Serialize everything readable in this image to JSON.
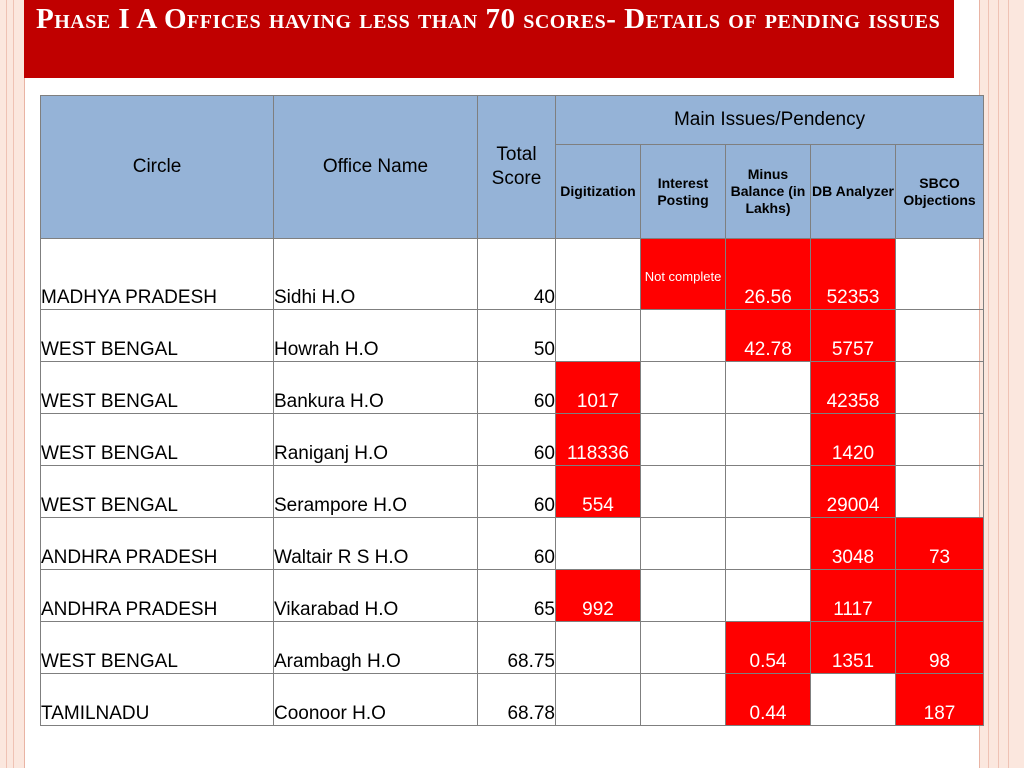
{
  "title": "Phase I A Offices having less than 70 scores- Details of pending issues",
  "table": {
    "headers": {
      "circle": "Circle",
      "office_name": "Office Name",
      "total_score": "Total Score",
      "main_issues": "Main Issues/Pendency",
      "digitization": "Digitization",
      "interest_posting": "Interest Posting",
      "minus_balance": "Minus Balance (in Lakhs)",
      "db_analyzer": "DB Analyzer",
      "sbco_objections": "SBCO Objections"
    },
    "highlight_color": "#ff0000",
    "header_color": "#95b3d7",
    "rows": [
      {
        "circle": "MADHYA PRADESH",
        "office": "Sidhi H.O",
        "total": "40",
        "digitization": "",
        "interest": "Not complete",
        "minus": "26.56",
        "db": "52353",
        "sbco": ""
      },
      {
        "circle": "WEST BENGAL",
        "office": "Howrah H.O",
        "total": "50",
        "digitization": "",
        "interest": "",
        "minus": "42.78",
        "db": "5757",
        "sbco": ""
      },
      {
        "circle": "WEST BENGAL",
        "office": "Bankura H.O",
        "total": "60",
        "digitization": "1017",
        "interest": "",
        "minus": "",
        "db": "42358",
        "sbco": ""
      },
      {
        "circle": "WEST BENGAL",
        "office": "Raniganj H.O",
        "total": "60",
        "digitization": "118336",
        "interest": "",
        "minus": "",
        "db": "1420",
        "sbco": ""
      },
      {
        "circle": "WEST BENGAL",
        "office": "Serampore H.O",
        "total": "60",
        "digitization": "554",
        "interest": "",
        "minus": "",
        "db": "29004",
        "sbco": ""
      },
      {
        "circle": "ANDHRA PRADESH",
        "office": "Waltair R S H.O",
        "total": "60",
        "digitization": "",
        "interest": "",
        "minus": "",
        "db": "3048",
        "sbco": "73"
      },
      {
        "circle": "ANDHRA PRADESH",
        "office": "Vikarabad H.O",
        "total": "65",
        "digitization": "992",
        "interest": "",
        "minus": "",
        "db": "1117",
        "sbco": ""
      },
      {
        "circle": "WEST BENGAL",
        "office": "Arambagh H.O",
        "total": "68.75",
        "digitization": "",
        "interest": "",
        "minus": "0.54",
        "db": "1351",
        "sbco": "98"
      },
      {
        "circle": "TAMILNADU",
        "office": "Coonoor H.O",
        "total": "68.78",
        "digitization": "",
        "interest": "",
        "minus": "0.44",
        "db": "",
        "sbco": "187"
      }
    ],
    "red_cells": [
      [
        "interest",
        "minus",
        "db"
      ],
      [
        "minus",
        "db"
      ],
      [
        "digitization",
        "db"
      ],
      [
        "digitization",
        "db"
      ],
      [
        "digitization",
        "db"
      ],
      [
        "db",
        "sbco"
      ],
      [
        "digitization",
        "db",
        "sbco"
      ],
      [
        "minus",
        "db",
        "sbco"
      ],
      [
        "minus",
        "sbco"
      ]
    ]
  }
}
